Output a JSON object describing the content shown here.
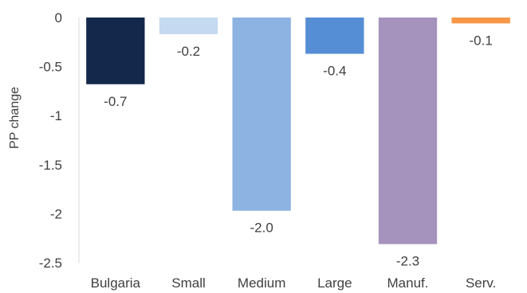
{
  "chart_data": {
    "type": "bar",
    "title": "",
    "xlabel": "",
    "ylabel": "PP change",
    "ylim": [
      -2.5,
      0
    ],
    "yticks": [
      0,
      -0.5,
      -1,
      -1.5,
      -2,
      -2.5
    ],
    "ytick_labels": [
      "0",
      "-0.5",
      "-1",
      "-1.5",
      "-2",
      "-2.5"
    ],
    "grid": false,
    "categories": [
      "Bulgaria",
      "Small",
      "Medium",
      "Large",
      "Manuf.",
      "Serv."
    ],
    "values": [
      -0.68,
      -0.17,
      -1.97,
      -0.37,
      -2.31,
      -0.06
    ],
    "data_labels": [
      "-0.7",
      "-0.2",
      "-2.0",
      "-0.4",
      "-2.3",
      "-0.1"
    ],
    "colors": [
      "#14284b",
      "#c5d9f1",
      "#8db3e2",
      "#558ed5",
      "#a593be",
      "#f79646"
    ]
  }
}
